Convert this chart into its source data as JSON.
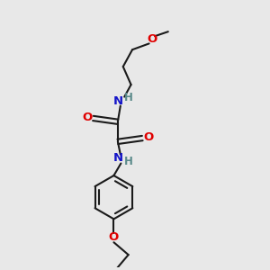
{
  "bg_color": "#e8e8e8",
  "bond_color": "#1a1a1a",
  "N_color": "#1414c8",
  "O_color": "#e00000",
  "H_color": "#5a8a8a",
  "line_width": 1.5,
  "figsize": [
    3.0,
    3.0
  ],
  "dpi": 100,
  "xlim": [
    0,
    10
  ],
  "ylim": [
    0,
    10
  ]
}
